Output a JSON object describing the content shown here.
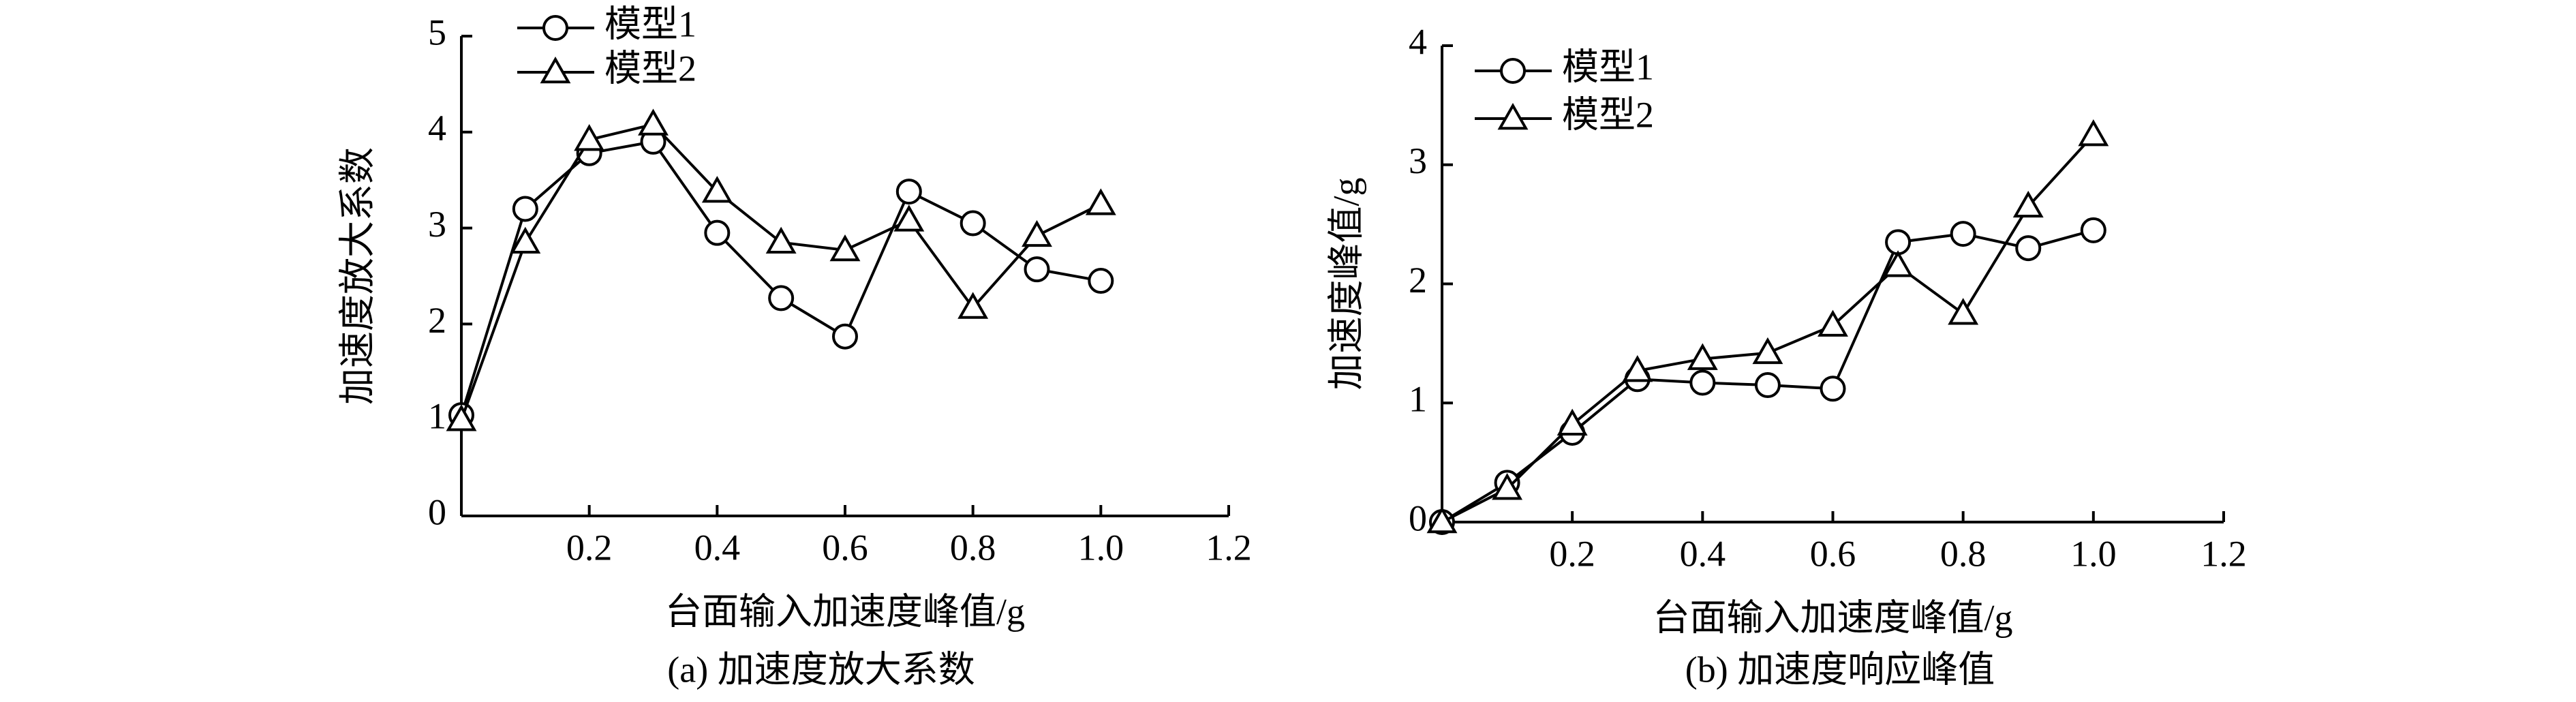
{
  "chart_data": [
    {
      "type": "line",
      "caption": "(a) 加速度放大系数",
      "x_label": "台面输入加速度峰值/g",
      "y_label": "加速度放大系数",
      "x": [
        0,
        0.1,
        0.2,
        0.3,
        0.4,
        0.5,
        0.6,
        0.7,
        0.8,
        0.9,
        1.0
      ],
      "series": [
        {
          "name": "模型1",
          "color": "#000000",
          "marker": "circle",
          "values": [
            1.05,
            3.2,
            3.78,
            3.9,
            2.95,
            2.27,
            1.87,
            3.38,
            3.05,
            2.57,
            2.45
          ]
        },
        {
          "name": "模型2",
          "color": "#000000",
          "marker": "triangle",
          "values": [
            1.0,
            2.85,
            3.92,
            4.08,
            3.38,
            2.85,
            2.77,
            3.08,
            2.17,
            2.92,
            3.25
          ]
        }
      ],
      "xlim": [
        0,
        1.2
      ],
      "xticks": [
        0.2,
        0.4,
        0.6,
        0.8,
        {
          "value": 1,
          "label": "1.0"
        },
        1.2
      ],
      "ylim": [
        0,
        5
      ],
      "yticks": [
        0,
        1,
        2,
        3,
        4,
        5
      ],
      "legend": "upper left",
      "grid": false
    },
    {
      "type": "line",
      "caption": "(b) 加速度响应峰值",
      "x_label": "台面输入加速度峰值/g",
      "y_label": "加速度峰值/g",
      "x": [
        0,
        0.1,
        0.2,
        0.3,
        0.4,
        0.5,
        0.6,
        0.7,
        0.8,
        0.9,
        1.0
      ],
      "series": [
        {
          "name": "模型1",
          "color": "#000000",
          "marker": "circle",
          "values": [
            0,
            0.33,
            0.75,
            1.2,
            1.17,
            1.15,
            1.12,
            2.35,
            2.42,
            2.3,
            2.45
          ]
        },
        {
          "name": "模型2",
          "color": "#000000",
          "marker": "triangle",
          "values": [
            0,
            0.28,
            0.82,
            1.27,
            1.37,
            1.42,
            1.65,
            2.15,
            1.75,
            2.65,
            3.25
          ]
        }
      ],
      "xlim": [
        0,
        1.2
      ],
      "xticks": [
        0.2,
        0.4,
        0.6,
        0.8,
        {
          "value": 1,
          "label": "1.0"
        },
        1.2
      ],
      "ylim": [
        0,
        4
      ],
      "yticks": [
        0,
        1,
        2,
        3,
        4
      ],
      "legend": "upper left",
      "grid": false
    }
  ]
}
